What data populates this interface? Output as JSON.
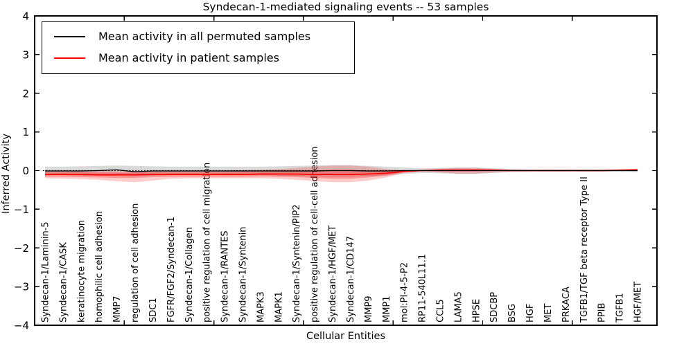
{
  "figure": {
    "title": "Syndecan-1-mediated signaling events -- 53 samples",
    "xlabel": "Cellular Entities",
    "ylabel": "Inferred Activity"
  },
  "legend": {
    "entries": [
      {
        "label": "Mean activity in all permuted samples",
        "color": "#000000"
      },
      {
        "label": "Mean activity in patient samples",
        "color": "#ff0000"
      }
    ]
  },
  "chart_data": {
    "type": "line",
    "title": "Syndecan-1-mediated signaling events -- 53 samples",
    "xlabel": "Cellular Entities",
    "ylabel": "Inferred Activity",
    "ylim": [
      -4,
      4
    ],
    "yticks": [
      4,
      3,
      2,
      1,
      0,
      -1,
      -2,
      -3,
      -4
    ],
    "grid": false,
    "zero_line": true,
    "legend_position": "upper left",
    "categories": [
      "Syndecan-1/Laminin-5",
      "Syndecan-1/CASK",
      "keratinocyte migration",
      "homophilic cell adhesion",
      "MMP7",
      "regulation of cell adhesion",
      "SDC1",
      "FGFR/FGF2/Syndecan-1",
      "Syndecan-1/Collagen",
      "positive regulation of cell migration",
      "Syndecan-1/RANTES",
      "Syndecan-1/Syntenin",
      "MAPK3",
      "MAPK1",
      "Syndecan-1/Syntenin/PIP2",
      "positive regulation of cell-cell adhesion",
      "Syndecan-1/HGF/MET",
      "Syndecan-1/CD147",
      "MMP9",
      "MMP1",
      "mol:PI-4-5-P2",
      "RP11-540L11.1",
      "CCL5",
      "LAMA5",
      "HPSE",
      "SDCBP",
      "BSG",
      "HGF",
      "MET",
      "PRKACA",
      "TGFB1/TGF beta receptor Type II",
      "PPIB",
      "TGFB1",
      "HGF/MET"
    ],
    "series": [
      {
        "name": "Mean activity in all permuted samples",
        "color": "#000000",
        "width": 1.3,
        "values": [
          -0.01,
          -0.01,
          -0.01,
          0.0,
          0.02,
          -0.03,
          -0.01,
          -0.01,
          -0.01,
          -0.01,
          -0.01,
          -0.01,
          -0.01,
          -0.01,
          -0.01,
          -0.01,
          0.0,
          0.0,
          -0.01,
          -0.01,
          0.0,
          0.0,
          0.0,
          0.0,
          0.0,
          0.0,
          0.0,
          0.0,
          0.0,
          0.0,
          0.0,
          0.0,
          0.0,
          0.0
        ]
      },
      {
        "name": "Mean activity in patient samples",
        "color": "#ff0000",
        "width": 1.8,
        "values": [
          -0.1,
          -0.1,
          -0.1,
          -0.11,
          -0.11,
          -0.11,
          -0.1,
          -0.1,
          -0.1,
          -0.1,
          -0.1,
          -0.1,
          -0.09,
          -0.09,
          -0.09,
          -0.1,
          -0.1,
          -0.1,
          -0.09,
          -0.07,
          -0.02,
          0.0,
          0.01,
          0.01,
          0.01,
          0.01,
          0.0,
          0.0,
          0.0,
          0.0,
          0.0,
          0.0,
          0.01,
          0.02
        ]
      }
    ],
    "bands": [
      {
        "name": "permuted-std-band",
        "color": "rgba(130,130,130,0.30)",
        "upper": [
          0.1,
          0.1,
          0.11,
          0.12,
          0.13,
          0.12,
          0.11,
          0.1,
          0.1,
          0.1,
          0.1,
          0.1,
          0.1,
          0.11,
          0.12,
          0.13,
          0.14,
          0.14,
          0.12,
          0.1,
          0.08,
          0.06,
          0.07,
          0.08,
          0.08,
          0.06,
          0.04,
          0.03,
          0.03,
          0.03,
          0.03,
          0.03,
          0.03,
          0.04
        ],
        "lower": [
          -0.12,
          -0.12,
          -0.13,
          -0.13,
          -0.14,
          -0.15,
          -0.13,
          -0.12,
          -0.12,
          -0.12,
          -0.12,
          -0.12,
          -0.12,
          -0.13,
          -0.14,
          -0.15,
          -0.16,
          -0.16,
          -0.14,
          -0.12,
          -0.09,
          -0.06,
          -0.07,
          -0.08,
          -0.08,
          -0.06,
          -0.04,
          -0.03,
          -0.03,
          -0.03,
          -0.03,
          -0.03,
          -0.03,
          -0.04
        ]
      },
      {
        "name": "patient-outer-band",
        "color": "rgba(255,0,0,0.20)",
        "upper": [
          0.0,
          -0.01,
          -0.01,
          -0.01,
          -0.01,
          -0.01,
          -0.01,
          0.0,
          0.0,
          0.0,
          0.0,
          0.01,
          0.02,
          0.04,
          0.07,
          0.1,
          0.13,
          0.13,
          0.1,
          0.04,
          0.01,
          0.01,
          0.05,
          0.07,
          0.07,
          0.04,
          0.02,
          0.01,
          0.01,
          0.01,
          0.01,
          0.01,
          0.03,
          0.05
        ],
        "lower": [
          -0.2,
          -0.21,
          -0.22,
          -0.24,
          -0.28,
          -0.3,
          -0.26,
          -0.21,
          -0.2,
          -0.2,
          -0.2,
          -0.2,
          -0.2,
          -0.21,
          -0.24,
          -0.27,
          -0.3,
          -0.3,
          -0.26,
          -0.18,
          -0.06,
          -0.01,
          -0.05,
          -0.08,
          -0.08,
          -0.05,
          -0.02,
          -0.02,
          -0.02,
          -0.02,
          -0.02,
          -0.02,
          -0.01,
          0.0
        ]
      },
      {
        "name": "patient-inner-band",
        "color": "rgba(255,0,0,0.28)",
        "upper": [
          -0.04,
          -0.04,
          -0.04,
          -0.05,
          -0.05,
          -0.05,
          -0.04,
          -0.04,
          -0.04,
          -0.04,
          -0.04,
          -0.03,
          -0.03,
          -0.02,
          -0.01,
          0.0,
          0.02,
          0.02,
          0.0,
          -0.01,
          0.0,
          0.01,
          0.03,
          0.04,
          0.04,
          0.03,
          0.01,
          0.01,
          0.01,
          0.01,
          0.01,
          0.01,
          0.02,
          0.03
        ],
        "lower": [
          -0.16,
          -0.16,
          -0.17,
          -0.18,
          -0.19,
          -0.19,
          -0.17,
          -0.16,
          -0.16,
          -0.16,
          -0.16,
          -0.16,
          -0.15,
          -0.16,
          -0.17,
          -0.19,
          -0.21,
          -0.21,
          -0.18,
          -0.13,
          -0.04,
          -0.01,
          -0.02,
          -0.02,
          -0.02,
          -0.01,
          -0.01,
          -0.01,
          -0.01,
          -0.01,
          -0.01,
          -0.01,
          0.0,
          0.01
        ]
      }
    ]
  }
}
